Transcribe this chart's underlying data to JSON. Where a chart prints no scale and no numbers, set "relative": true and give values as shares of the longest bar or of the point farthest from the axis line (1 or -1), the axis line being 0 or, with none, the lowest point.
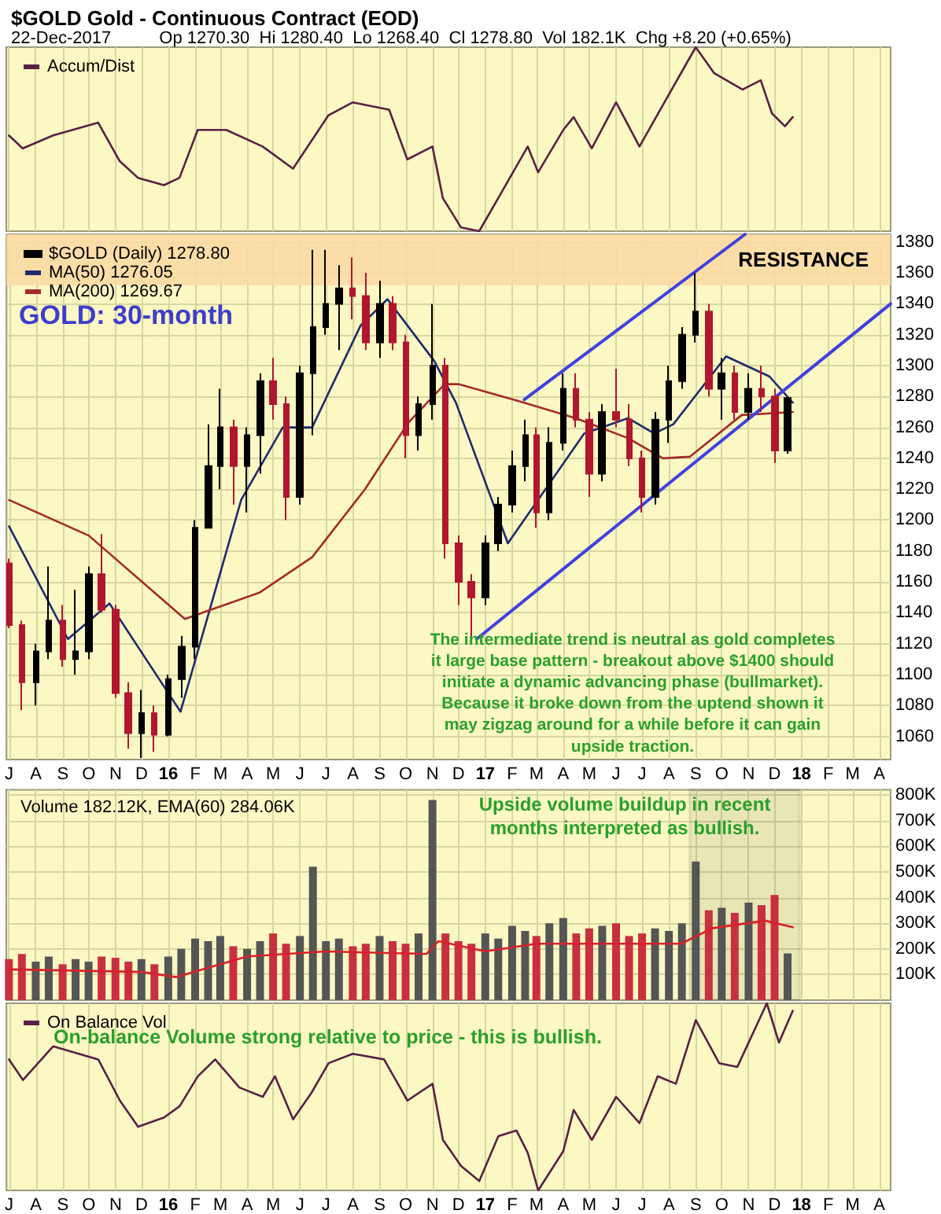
{
  "chart_data": [
    {
      "type": "line",
      "title": "$GOLD Gold - Continuous Contract (EOD)",
      "subtitle": "22-Dec-2017          Op 1270.30  Hi 1280.40  Lo 1268.40  Cl 1278.80  Vol 182.1K  Chg +8.20 (+0.65%)",
      "relative": true,
      "grid": "x",
      "legend": "top left",
      "tick_labels": false,
      "xlim": [
        "2015-06-28",
        "2018-04-14"
      ],
      "xticks": [
        "2015-07",
        "2015-08",
        "2015-09",
        "2015-10",
        "2015-11",
        "2015-12",
        "2016-01",
        "2016-02",
        "2016-03",
        "2016-04",
        "2016-05",
        "2016-06",
        "2016-07",
        "2016-08",
        "2016-09",
        "2016-10",
        "2016-11",
        "2016-12",
        "2017-01",
        "2017-02",
        "2017-03",
        "2017-04",
        "2017-05",
        "2017-06",
        "2017-07",
        "2017-08",
        "2017-09",
        "2017-10",
        "2017-11",
        "2017-12",
        "2018-01",
        "2018-02",
        "2018-03",
        "2018-04"
      ],
      "series": [
        {
          "name": "Accum/Dist",
          "color": "#5a1f45",
          "x": [
            "2015-07-01",
            "2015-07-17",
            "2015-08-21",
            "2015-10-12",
            "2015-11-06",
            "2015-11-27",
            "2015-12-27",
            "2016-01-14",
            "2016-02-04",
            "2016-03-08",
            "2016-04-19",
            "2016-05-24",
            "2016-07-04",
            "2016-08-01",
            "2016-09-12",
            "2016-10-03",
            "2016-11-01",
            "2016-11-13",
            "2016-12-04",
            "2016-12-25",
            "2017-01-16",
            "2017-02-19",
            "2017-03-03",
            "2017-04-01",
            "2017-04-13",
            "2017-05-04",
            "2017-06-01",
            "2017-06-28",
            "2017-07-28",
            "2017-09-01",
            "2017-09-22",
            "2017-10-25",
            "2017-11-15",
            "2017-11-28",
            "2017-12-13",
            "2017-12-22"
          ],
          "values": [
            0.52,
            0.45,
            0.52,
            0.59,
            0.38,
            0.29,
            0.25,
            0.29,
            0.55,
            0.55,
            0.46,
            0.34,
            0.63,
            0.7,
            0.66,
            0.39,
            0.46,
            0.18,
            0.02,
            0,
            0.18,
            0.46,
            0.32,
            0.55,
            0.62,
            0.45,
            0.7,
            0.46,
            0.71,
            1,
            0.86,
            0.77,
            0.82,
            0.64,
            0.57,
            0.62
          ]
        }
      ]
    },
    {
      "type": "candlestick",
      "grid": true,
      "legend": "top left",
      "xlim": [
        "2015-06-28",
        "2018-04-14"
      ],
      "ylim": [
        1045,
        1385
      ],
      "yticks": [
        1060,
        1080,
        1100,
        1120,
        1140,
        1160,
        1180,
        1200,
        1220,
        1240,
        1260,
        1280,
        1300,
        1320,
        1340,
        1360,
        1380
      ],
      "xticks": [
        {
          "value": "2015-07",
          "label": "J"
        },
        {
          "value": "2015-08",
          "label": "A"
        },
        {
          "value": "2015-09",
          "label": "S"
        },
        {
          "value": "2015-10",
          "label": "O"
        },
        {
          "value": "2015-11",
          "label": "N"
        },
        {
          "value": "2015-12",
          "label": "D"
        },
        {
          "value": "2016-01",
          "label": "16"
        },
        {
          "value": "2016-02",
          "label": "F"
        },
        {
          "value": "2016-03",
          "label": "M"
        },
        {
          "value": "2016-04",
          "label": "A"
        },
        {
          "value": "2016-05",
          "label": "M"
        },
        {
          "value": "2016-06",
          "label": "J"
        },
        {
          "value": "2016-07",
          "label": "J"
        },
        {
          "value": "2016-08",
          "label": "A"
        },
        {
          "value": "2016-09",
          "label": "S"
        },
        {
          "value": "2016-10",
          "label": "O"
        },
        {
          "value": "2016-11",
          "label": "N"
        },
        {
          "value": "2016-12",
          "label": "D"
        },
        {
          "value": "2017-01",
          "label": "17"
        },
        {
          "value": "2017-02",
          "label": "F"
        },
        {
          "value": "2017-03",
          "label": "M"
        },
        {
          "value": "2017-04",
          "label": "A"
        },
        {
          "value": "2017-05",
          "label": "M"
        },
        {
          "value": "2017-06",
          "label": "J"
        },
        {
          "value": "2017-07",
          "label": "J"
        },
        {
          "value": "2017-08",
          "label": "A"
        },
        {
          "value": "2017-09",
          "label": "S"
        },
        {
          "value": "2017-10",
          "label": "O"
        },
        {
          "value": "2017-11",
          "label": "N"
        },
        {
          "value": "2017-12",
          "label": "D"
        },
        {
          "value": "2018-01",
          "label": "18"
        },
        {
          "value": "2018-02",
          "label": "F"
        },
        {
          "value": "2018-03",
          "label": "M"
        },
        {
          "value": "2018-04",
          "label": "A"
        }
      ],
      "x": [
        "2015-07-01",
        "2015-07-16",
        "2015-08-01",
        "2015-08-16",
        "2015-09-01",
        "2015-09-16",
        "2015-10-01",
        "2015-10-16",
        "2015-11-01",
        "2015-11-16",
        "2015-12-01",
        "2015-12-16",
        "2016-01-01",
        "2016-01-16",
        "2016-02-01",
        "2016-02-16",
        "2016-03-01",
        "2016-03-16",
        "2016-04-01",
        "2016-04-16",
        "2016-05-01",
        "2016-05-16",
        "2016-06-01",
        "2016-06-16",
        "2016-07-01",
        "2016-07-16",
        "2016-08-01",
        "2016-08-16",
        "2016-09-01",
        "2016-09-16",
        "2016-10-01",
        "2016-10-16",
        "2016-11-01",
        "2016-11-16",
        "2016-12-01",
        "2016-12-16",
        "2017-01-01",
        "2017-01-16",
        "2017-02-01",
        "2017-02-16",
        "2017-03-01",
        "2017-03-16",
        "2017-04-01",
        "2017-04-16",
        "2017-05-01",
        "2017-05-16",
        "2017-06-01",
        "2017-06-16",
        "2017-07-01",
        "2017-07-16",
        "2017-08-01",
        "2017-08-16",
        "2017-09-01",
        "2017-09-16",
        "2017-10-01",
        "2017-10-16",
        "2017-11-01",
        "2017-11-16",
        "2017-12-01",
        "2017-12-16"
      ],
      "bands": [
        {
          "axis": "y",
          "from": 1352,
          "to": 1385,
          "label": "RESISTANCE",
          "color": "#fbd9a4"
        }
      ],
      "annotations": [
        "GOLD: 30-month",
        "The intermediate trend is neutral as gold completes\nit large base pattern - breakout above $1400 should\ninitiate a dynamic advancing phase (bullmarket).\nBecause it broke down from the uptend shown it\nmay zigzag around for a while before it can gain\nupside traction."
      ],
      "series": [
        {
          "name": "$GOLD (Daily) 1278.80",
          "ohlc": [
            [
              1172,
              1175,
              1130,
              1132
            ],
            [
              1132,
              1135,
              1077,
              1095
            ],
            [
              1095,
              1120,
              1080,
              1115
            ],
            [
              1115,
              1170,
              1110,
              1135
            ],
            [
              1135,
              1145,
              1105,
              1110
            ],
            [
              1110,
              1155,
              1100,
              1115
            ],
            [
              1115,
              1170,
              1110,
              1165
            ],
            [
              1165,
              1191,
              1140,
              1142
            ],
            [
              1142,
              1145,
              1085,
              1088
            ],
            [
              1088,
              1095,
              1052,
              1062
            ],
            [
              1062,
              1090,
              1046,
              1075
            ],
            [
              1075,
              1080,
              1050,
              1061
            ],
            [
              1061,
              1100,
              1060,
              1097
            ],
            [
              1097,
              1125,
              1085,
              1118
            ],
            [
              1118,
              1200,
              1110,
              1195
            ],
            [
              1195,
              1262,
              1195,
              1235
            ],
            [
              1235,
              1285,
              1220,
              1260
            ],
            [
              1260,
              1265,
              1210,
              1235
            ],
            [
              1235,
              1260,
              1205,
              1255
            ],
            [
              1255,
              1295,
              1230,
              1290
            ],
            [
              1290,
              1305,
              1265,
              1275
            ],
            [
              1275,
              1280,
              1200,
              1215
            ],
            [
              1215,
              1300,
              1210,
              1295
            ],
            [
              1295,
              1375,
              1255,
              1325
            ],
            [
              1325,
              1375,
              1320,
              1340
            ],
            [
              1340,
              1365,
              1310,
              1350
            ],
            [
              1350,
              1370,
              1330,
              1345
            ],
            [
              1345,
              1360,
              1310,
              1315
            ],
            [
              1315,
              1355,
              1305,
              1340
            ],
            [
              1340,
              1345,
              1310,
              1315
            ],
            [
              1315,
              1320,
              1240,
              1255
            ],
            [
              1255,
              1280,
              1245,
              1275
            ],
            [
              1275,
              1340,
              1265,
              1300
            ],
            [
              1300,
              1305,
              1175,
              1185
            ],
            [
              1185,
              1190,
              1145,
              1160
            ],
            [
              1160,
              1165,
              1123,
              1150
            ],
            [
              1150,
              1190,
              1145,
              1185
            ],
            [
              1185,
              1215,
              1180,
              1210
            ],
            [
              1210,
              1245,
              1205,
              1235
            ],
            [
              1235,
              1265,
              1225,
              1255
            ],
            [
              1255,
              1260,
              1195,
              1205
            ],
            [
              1205,
              1260,
              1200,
              1250
            ],
            [
              1250,
              1295,
              1245,
              1285
            ],
            [
              1285,
              1295,
              1260,
              1265
            ],
            [
              1265,
              1270,
              1215,
              1230
            ],
            [
              1230,
              1275,
              1225,
              1270
            ],
            [
              1270,
              1298,
              1260,
              1265
            ],
            [
              1265,
              1275,
              1235,
              1240
            ],
            [
              1240,
              1245,
              1205,
              1215
            ],
            [
              1215,
              1270,
              1210,
              1265
            ],
            [
              1265,
              1300,
              1250,
              1290
            ],
            [
              1290,
              1325,
              1285,
              1320
            ],
            [
              1320,
              1360,
              1315,
              1335
            ],
            [
              1335,
              1340,
              1280,
              1285
            ],
            [
              1285,
              1305,
              1265,
              1295
            ],
            [
              1295,
              1300,
              1265,
              1270
            ],
            [
              1270,
              1295,
              1265,
              1285
            ],
            [
              1285,
              1300,
              1270,
              1280
            ],
            [
              1280,
              1285,
              1237,
              1245
            ],
            [
              1245,
              1280,
              1243,
              1279
            ]
          ],
          "colors": [
            "#b0172e",
            "#b0172e",
            "#000000",
            "#000000",
            "#b0172e",
            "#000000",
            "#000000",
            "#b0172e",
            "#b0172e",
            "#b0172e",
            "#000000",
            "#b0172e",
            "#000000",
            "#000000",
            "#000000",
            "#000000",
            "#000000",
            "#b0172e",
            "#000000",
            "#000000",
            "#b0172e",
            "#b0172e",
            "#000000",
            "#000000",
            "#000000",
            "#000000",
            "#b0172e",
            "#b0172e",
            "#000000",
            "#b0172e",
            "#b0172e",
            "#000000",
            "#000000",
            "#b0172e",
            "#b0172e",
            "#b0172e",
            "#000000",
            "#000000",
            "#000000",
            "#000000",
            "#b0172e",
            "#000000",
            "#000000",
            "#b0172e",
            "#b0172e",
            "#000000",
            "#b0172e",
            "#b0172e",
            "#b0172e",
            "#000000",
            "#000000",
            "#000000",
            "#000000",
            "#b0172e",
            "#000000",
            "#b0172e",
            "#000000",
            "#b0172e",
            "#b0172e",
            "#000000"
          ]
        },
        {
          "type": "line",
          "name": "MA(50) 1276.05",
          "color": "#1f2a6e",
          "x": [
            "2015-07-01",
            "2015-09-07",
            "2015-10-25",
            "2016-01-15",
            "2016-03-25",
            "2016-05-12",
            "2016-06-15",
            "2016-08-10",
            "2016-09-10",
            "2016-11-03",
            "2016-11-28",
            "2017-01-27",
            "2017-04-25",
            "2017-06-15",
            "2017-07-15",
            "2017-08-06",
            "2017-10-06",
            "2017-11-25",
            "2017-12-22"
          ],
          "values": [
            1196,
            1123,
            1146,
            1076,
            1213,
            1260,
            1260,
            1326,
            1343,
            1303,
            1276,
            1185,
            1256,
            1266,
            1256,
            1262,
            1306,
            1293,
            1276
          ]
        },
        {
          "type": "line",
          "name": "MA(200) 1269.67",
          "color": "#a52a2a",
          "x": [
            "2015-07-01",
            "2015-10-01",
            "2016-01-20",
            "2016-04-15",
            "2016-06-15",
            "2016-08-15",
            "2016-10-04",
            "2016-11-15",
            "2016-12-01",
            "2017-02-15",
            "2017-04-15",
            "2017-06-15",
            "2017-07-25",
            "2017-08-25",
            "2017-10-24",
            "2017-12-22"
          ],
          "values": [
            1213,
            1190,
            1136,
            1153,
            1176,
            1220,
            1263,
            1288,
            1288,
            1276,
            1266,
            1253,
            1240,
            1241,
            1268,
            1270
          ]
        },
        {
          "type": "line",
          "color": "#4040e0",
          "x": [
            "2017-02-15",
            "2017-10-28"
          ],
          "values": [
            1278,
            1385
          ]
        },
        {
          "type": "line",
          "color": "#4040e0",
          "x": [
            "2016-12-22",
            "2018-04-14"
          ],
          "values": [
            1123,
            1340
          ]
        }
      ]
    },
    {
      "type": "bar",
      "title": "Volume 182.12K, EMA(60) 284.06K",
      "grid": true,
      "tick_labels": "y",
      "xlim": [
        "2015-06-28",
        "2018-04-14"
      ],
      "ylim": [
        0,
        820
      ],
      "yticks": [
        {
          "value": 100,
          "label": "100K"
        },
        {
          "value": 200,
          "label": "200K"
        },
        {
          "value": 300,
          "label": "300K"
        },
        {
          "value": 400,
          "label": "400K"
        },
        {
          "value": 500,
          "label": "500K"
        },
        {
          "value": 600,
          "label": "600K"
        },
        {
          "value": 700,
          "label": "700K"
        },
        {
          "value": 800,
          "label": "800K"
        }
      ],
      "xticks": [
        "2015-07",
        "2015-08",
        "2015-09",
        "2015-10",
        "2015-11",
        "2015-12",
        "2016-01",
        "2016-02",
        "2016-03",
        "2016-04",
        "2016-05",
        "2016-06",
        "2016-07",
        "2016-08",
        "2016-09",
        "2016-10",
        "2016-11",
        "2016-12",
        "2017-01",
        "2017-02",
        "2017-03",
        "2017-04",
        "2017-05",
        "2017-06",
        "2017-07",
        "2017-08",
        "2017-09",
        "2017-10",
        "2017-11",
        "2017-12",
        "2018-01",
        "2018-02",
        "2018-03",
        "2018-04"
      ],
      "x": [
        "2015-07-01",
        "2015-07-16",
        "2015-08-01",
        "2015-08-16",
        "2015-09-01",
        "2015-09-16",
        "2015-10-01",
        "2015-10-16",
        "2015-11-01",
        "2015-11-16",
        "2015-12-01",
        "2015-12-16",
        "2016-01-01",
        "2016-01-16",
        "2016-02-01",
        "2016-02-16",
        "2016-03-01",
        "2016-03-16",
        "2016-04-01",
        "2016-04-16",
        "2016-05-01",
        "2016-05-16",
        "2016-06-01",
        "2016-06-16",
        "2016-07-01",
        "2016-07-16",
        "2016-08-01",
        "2016-08-16",
        "2016-09-01",
        "2016-09-16",
        "2016-10-01",
        "2016-10-16",
        "2016-11-01",
        "2016-11-16",
        "2016-12-01",
        "2016-12-16",
        "2017-01-01",
        "2017-01-16",
        "2017-02-01",
        "2017-02-16",
        "2017-03-01",
        "2017-03-16",
        "2017-04-01",
        "2017-04-16",
        "2017-05-01",
        "2017-05-16",
        "2017-06-01",
        "2017-06-16",
        "2017-07-01",
        "2017-07-16",
        "2017-08-01",
        "2017-08-16",
        "2017-09-01",
        "2017-09-16",
        "2017-10-01",
        "2017-10-16",
        "2017-11-01",
        "2017-11-16",
        "2017-12-01",
        "2017-12-16"
      ],
      "bands": [
        {
          "axis": "x",
          "from": "2017-08-25",
          "to": "2017-12-30",
          "color": "#000000"
        }
      ],
      "annotations": [
        "Upside volume buildup in recent\nmonths interpreted as bullish."
      ],
      "series": [
        {
          "values": [
            160,
            180,
            150,
            170,
            140,
            160,
            150,
            170,
            165,
            150,
            160,
            140,
            170,
            200,
            240,
            230,
            250,
            210,
            200,
            230,
            260,
            220,
            250,
            520,
            230,
            240,
            210,
            220,
            250,
            230,
            220,
            260,
            780,
            260,
            230,
            220,
            260,
            240,
            290,
            270,
            250,
            300,
            320,
            260,
            280,
            290,
            300,
            250,
            260,
            280,
            270,
            300,
            540,
            350,
            360,
            340,
            380,
            370,
            410,
            182
          ],
          "colors": [
            "#c8303f",
            "#c8303f",
            "#555555",
            "#555555",
            "#c8303f",
            "#555555",
            "#555555",
            "#c8303f",
            "#c8303f",
            "#c8303f",
            "#555555",
            "#c8303f",
            "#555555",
            "#555555",
            "#555555",
            "#555555",
            "#555555",
            "#c8303f",
            "#555555",
            "#555555",
            "#c8303f",
            "#c8303f",
            "#555555",
            "#555555",
            "#555555",
            "#555555",
            "#c8303f",
            "#c8303f",
            "#555555",
            "#c8303f",
            "#c8303f",
            "#555555",
            "#555555",
            "#c8303f",
            "#c8303f",
            "#c8303f",
            "#555555",
            "#555555",
            "#555555",
            "#555555",
            "#c8303f",
            "#555555",
            "#555555",
            "#c8303f",
            "#c8303f",
            "#555555",
            "#c8303f",
            "#c8303f",
            "#c8303f",
            "#555555",
            "#555555",
            "#555555",
            "#555555",
            "#c8303f",
            "#555555",
            "#c8303f",
            "#555555",
            "#c8303f",
            "#c8303f",
            "#555555"
          ]
        },
        {
          "type": "line",
          "color": "#d8202a",
          "x": [
            "2015-07-01",
            "2015-12-01",
            "2016-01-10",
            "2016-04-01",
            "2016-07-01",
            "2016-10-25",
            "2016-11-08",
            "2017-01-01",
            "2017-03-01",
            "2017-06-01",
            "2017-08-15",
            "2017-09-20",
            "2017-11-20",
            "2017-12-22"
          ],
          "values": [
            120,
            110,
            90,
            170,
            190,
            180,
            230,
            190,
            220,
            220,
            220,
            280,
            310,
            284
          ]
        }
      ]
    },
    {
      "type": "line",
      "relative": true,
      "grid": "x",
      "legend": "top left",
      "tick_labels": "x",
      "xlim": [
        "2015-06-28",
        "2018-04-14"
      ],
      "xticks": [
        {
          "value": "2015-07",
          "label": "J"
        },
        {
          "value": "2015-08",
          "label": "A"
        },
        {
          "value": "2015-09",
          "label": "S"
        },
        {
          "value": "2015-10",
          "label": "O"
        },
        {
          "value": "2015-11",
          "label": "N"
        },
        {
          "value": "2015-12",
          "label": "D"
        },
        {
          "value": "2016-01",
          "label": "16"
        },
        {
          "value": "2016-02",
          "label": "F"
        },
        {
          "value": "2016-03",
          "label": "M"
        },
        {
          "value": "2016-04",
          "label": "A"
        },
        {
          "value": "2016-05",
          "label": "M"
        },
        {
          "value": "2016-06",
          "label": "J"
        },
        {
          "value": "2016-07",
          "label": "J"
        },
        {
          "value": "2016-08",
          "label": "A"
        },
        {
          "value": "2016-09",
          "label": "S"
        },
        {
          "value": "2016-10",
          "label": "O"
        },
        {
          "value": "2016-11",
          "label": "N"
        },
        {
          "value": "2016-12",
          "label": "D"
        },
        {
          "value": "2017-01",
          "label": "17"
        },
        {
          "value": "2017-02",
          "label": "F"
        },
        {
          "value": "2017-03",
          "label": "M"
        },
        {
          "value": "2017-04",
          "label": "A"
        },
        {
          "value": "2017-05",
          "label": "M"
        },
        {
          "value": "2017-06",
          "label": "J"
        },
        {
          "value": "2017-07",
          "label": "J"
        },
        {
          "value": "2017-08",
          "label": "A"
        },
        {
          "value": "2017-09",
          "label": "S"
        },
        {
          "value": "2017-10",
          "label": "O"
        },
        {
          "value": "2017-11",
          "label": "N"
        },
        {
          "value": "2017-12",
          "label": "D"
        },
        {
          "value": "2018-01",
          "label": "18"
        },
        {
          "value": "2018-02",
          "label": "F"
        },
        {
          "value": "2018-03",
          "label": "M"
        },
        {
          "value": "2018-04",
          "label": "A"
        }
      ],
      "annotations": [
        "On-balance Volume strong relative to price - this is bullish."
      ],
      "series": [
        {
          "name": "On Balance Vol",
          "color": "#5a1f45",
          "x": [
            "2015-07-01",
            "2015-07-17",
            "2015-08-21",
            "2015-10-12",
            "2015-11-06",
            "2015-11-27",
            "2015-12-27",
            "2016-01-14",
            "2016-02-04",
            "2016-02-24",
            "2016-03-23",
            "2016-04-19",
            "2016-05-03",
            "2016-05-24",
            "2016-06-14",
            "2016-07-04",
            "2016-08-01",
            "2016-09-06",
            "2016-10-03",
            "2016-11-01",
            "2016-11-13",
            "2016-12-04",
            "2016-12-25",
            "2017-01-16",
            "2017-02-06",
            "2017-02-19",
            "2017-03-03",
            "2017-04-01",
            "2017-04-13",
            "2017-05-04",
            "2017-06-01",
            "2017-06-28",
            "2017-07-19",
            "2017-08-09",
            "2017-09-01",
            "2017-09-28",
            "2017-10-19",
            "2017-11-22",
            "2017-12-06",
            "2017-12-22"
          ],
          "values": [
            0.7,
            0.59,
            0.77,
            0.7,
            0.48,
            0.34,
            0.39,
            0.45,
            0.61,
            0.7,
            0.55,
            0.5,
            0.61,
            0.38,
            0.52,
            0.68,
            0.73,
            0.7,
            0.48,
            0.57,
            0.27,
            0.13,
            0.05,
            0.29,
            0.32,
            0.2,
            0,
            0.21,
            0.43,
            0.27,
            0.5,
            0.36,
            0.61,
            0.57,
            0.91,
            0.68,
            0.66,
            1,
            0.79,
            0.96
          ]
        }
      ]
    }
  ]
}
